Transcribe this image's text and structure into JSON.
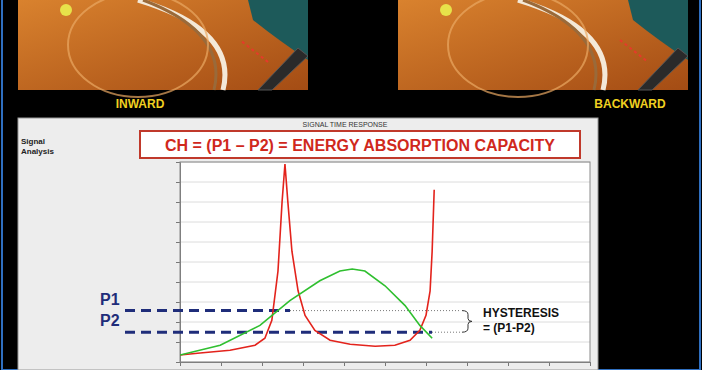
{
  "illustrations": [
    {
      "label": "INWARD"
    },
    {
      "label": "BACKWARD"
    }
  ],
  "chart_data": {
    "type": "line",
    "title": "SIGNAL TIME RESPONSE",
    "subtitle": "CH = (P1 – P2) = ENERGY ABSORPTION CAPACITY",
    "ylabel": [
      "Signal",
      "Analysis"
    ],
    "xlim": [
      0,
      100
    ],
    "ylim": [
      0,
      100
    ],
    "xticks": [
      0,
      10,
      20,
      30,
      40,
      50,
      60,
      70,
      80,
      90,
      100
    ],
    "yticks": [
      0,
      10,
      20,
      30,
      40,
      50,
      60,
      70,
      80,
      90,
      100
    ],
    "tick_labels": false,
    "grid": true,
    "series": [
      {
        "color": "#e3231c",
        "x": [
          0,
          4.9,
          12.2,
          18.3,
          20.7,
          22.4,
          23.9,
          24.9,
          25.6,
          26.3,
          27.3,
          28.8,
          30.5,
          32.9,
          36.6,
          41.5,
          47.6,
          52.4,
          56.1,
          58.5,
          60.0,
          61.0,
          61.5,
          62.0
        ],
        "values": [
          3.5,
          4.5,
          5.9,
          8.4,
          11.9,
          20.8,
          45.5,
          80.2,
          99,
          80.2,
          55.4,
          35.6,
          23.3,
          15.8,
          10.9,
          8.9,
          7.9,
          8.4,
          10.9,
          15.8,
          23.3,
          35.6,
          55.4,
          86.1
        ]
      },
      {
        "color": "#2fbf2f",
        "x": [
          0,
          9.8,
          19.5,
          26.8,
          34.1,
          39.0,
          42.0,
          45.1,
          50.0,
          54.9,
          58.5,
          61.5
        ],
        "values": [
          3.5,
          8.4,
          18.3,
          30.7,
          40.6,
          45.5,
          46.5,
          45.5,
          38.1,
          28.2,
          18.3,
          11.9
        ]
      }
    ],
    "reference_lines": [
      {
        "label": "P1",
        "value": 25.7,
        "color": "#1f2d7a",
        "line_style": "dashed"
      },
      {
        "label": "P2",
        "value": 14.9,
        "color": "#1f2d7a",
        "line_style": "dashed"
      }
    ],
    "annotation": {
      "text": [
        "HYSTERESIS",
        "= (P1-P2)"
      ]
    }
  }
}
